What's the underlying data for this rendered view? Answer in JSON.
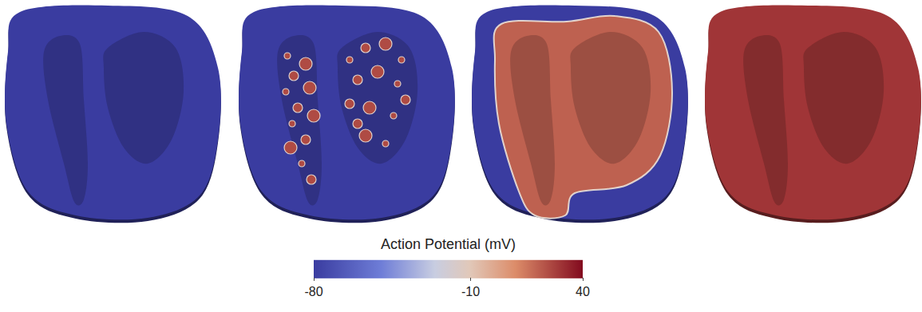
{
  "chart_data": {
    "type": "render",
    "colorbar": {
      "title": "Action Potential (mV)",
      "range": [
        -80,
        40
      ],
      "ticks": [
        -80,
        -10,
        40
      ]
    },
    "panels": [
      {
        "wall": -80,
        "inner": -80
      },
      {
        "wall": -80,
        "inner": -80,
        "patches": 25
      },
      {
        "wall": -80,
        "inner": 20
      },
      {
        "wall": 30,
        "inner": 30
      }
    ]
  }
}
